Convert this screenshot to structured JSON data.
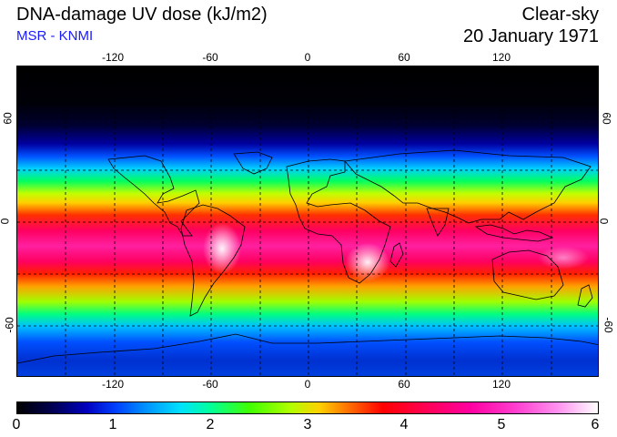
{
  "header": {
    "title": "DNA-damage UV dose (kJ/m2)",
    "subtitle": "MSR - KNMI",
    "sky_condition": "Clear-sky",
    "date": "20 January 1971"
  },
  "map": {
    "longitude_ticks": [
      "-120",
      "-60",
      "0",
      "60",
      "120"
    ],
    "latitude_ticks": [
      "60",
      "0",
      "-60"
    ],
    "longitude_range": [
      -180,
      180
    ],
    "latitude_range": [
      -90,
      90
    ],
    "gridline_style": "dashed"
  },
  "colorbar": {
    "labels": [
      "0",
      "1",
      "2",
      "3",
      "4",
      "5",
      "6"
    ],
    "range": [
      0,
      6
    ]
  }
}
